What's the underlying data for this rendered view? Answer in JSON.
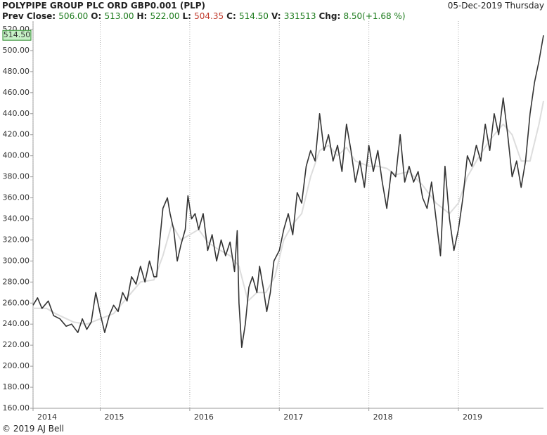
{
  "header": {
    "title": "POLYPIPE GROUP PLC ORD GBP0.001 (PLP)",
    "date": "05-Dec-2019 Thursday",
    "stats": [
      {
        "label": "Prev Close:",
        "value": "506.00",
        "color": "#1a7a1a"
      },
      {
        "label": "O:",
        "value": "513.00",
        "color": "#1a7a1a"
      },
      {
        "label": "H:",
        "value": "522.00",
        "color": "#1a7a1a"
      },
      {
        "label": "L:",
        "value": "504.35",
        "color": "#c0392b"
      },
      {
        "label": "C:",
        "value": "514.50",
        "color": "#1a7a1a"
      },
      {
        "label": "V:",
        "value": "331513",
        "color": "#1a7a1a"
      },
      {
        "label": "Chg:",
        "value": "8.50(+1.68 %)",
        "color": "#1a7a1a"
      }
    ]
  },
  "footer": "© 2019 AJ Bell",
  "chart_data": {
    "type": "line",
    "xlim": [
      2014.25,
      2019.95
    ],
    "xticks": [
      {
        "value": 2014.25,
        "label": "2014"
      },
      2015,
      2016,
      2017,
      2018,
      2019
    ],
    "ylim": [
      160,
      524
    ],
    "yticks": [
      {
        "value": 160,
        "label": "160.00"
      },
      {
        "value": 180,
        "label": "180.00"
      },
      {
        "value": 200,
        "label": "200.00"
      },
      {
        "value": 220,
        "label": "220.00"
      },
      {
        "value": 240,
        "label": "240.00"
      },
      {
        "value": 260,
        "label": "260.00"
      },
      {
        "value": 280,
        "label": "280.00"
      },
      {
        "value": 300,
        "label": "300.00"
      },
      {
        "value": 320,
        "label": "320.00"
      },
      {
        "value": 340,
        "label": "340.00"
      },
      {
        "value": 360,
        "label": "360.00"
      },
      {
        "value": 380,
        "label": "380.00"
      },
      {
        "value": 400,
        "label": "400.00"
      },
      {
        "value": 420,
        "label": "420.00"
      },
      {
        "value": 440,
        "label": "440.00"
      },
      {
        "value": 460,
        "label": "460.00"
      },
      {
        "value": 480,
        "label": "480.00"
      },
      {
        "value": 500,
        "label": "500.00"
      },
      {
        "value": 520,
        "label": "520.00"
      }
    ],
    "grid": true,
    "series": [
      {
        "color": "#333333",
        "x": [
          2014.25,
          2014.3,
          2014.35,
          2014.42,
          2014.48,
          2014.55,
          2014.62,
          2014.68,
          2014.75,
          2014.8,
          2014.85,
          2014.9,
          2014.95,
          2015.0,
          2015.05,
          2015.1,
          2015.15,
          2015.2,
          2015.25,
          2015.3,
          2015.35,
          2015.4,
          2015.45,
          2015.5,
          2015.55,
          2015.6,
          2015.63,
          2015.66,
          2015.7,
          2015.75,
          2015.78,
          2015.82,
          2015.86,
          2015.9,
          2015.95,
          2015.98,
          2016.02,
          2016.06,
          2016.1,
          2016.15,
          2016.2,
          2016.25,
          2016.3,
          2016.35,
          2016.4,
          2016.45,
          2016.5,
          2016.53,
          2016.55,
          2016.58,
          2016.62,
          2016.66,
          2016.7,
          2016.75,
          2016.78,
          2016.82,
          2016.86,
          2016.9,
          2016.94,
          2017.0,
          2017.05,
          2017.1,
          2017.15,
          2017.2,
          2017.25,
          2017.3,
          2017.35,
          2017.4,
          2017.45,
          2017.5,
          2017.55,
          2017.6,
          2017.65,
          2017.7,
          2017.75,
          2017.8,
          2017.85,
          2017.9,
          2017.95,
          2018.0,
          2018.05,
          2018.1,
          2018.15,
          2018.2,
          2018.25,
          2018.3,
          2018.35,
          2018.4,
          2018.45,
          2018.5,
          2018.55,
          2018.6,
          2018.65,
          2018.7,
          2018.75,
          2018.8,
          2018.85,
          2018.9,
          2018.95,
          2019.0,
          2019.05,
          2019.1,
          2019.15,
          2019.2,
          2019.25,
          2019.3,
          2019.35,
          2019.4,
          2019.45,
          2019.5,
          2019.55,
          2019.6,
          2019.65,
          2019.7,
          2019.75,
          2019.8,
          2019.85,
          2019.9,
          2019.95
        ],
        "values": [
          258,
          265,
          255,
          262,
          248,
          245,
          238,
          240,
          232,
          245,
          235,
          242,
          270,
          250,
          232,
          248,
          258,
          252,
          270,
          262,
          285,
          278,
          295,
          280,
          300,
          285,
          285,
          315,
          350,
          360,
          345,
          330,
          300,
          315,
          330,
          362,
          340,
          345,
          330,
          345,
          310,
          325,
          300,
          320,
          305,
          318,
          290,
          329,
          260,
          218,
          240,
          275,
          285,
          270,
          295,
          275,
          252,
          270,
          300,
          310,
          330,
          345,
          325,
          365,
          355,
          390,
          405,
          395,
          440,
          405,
          420,
          395,
          410,
          385,
          430,
          405,
          375,
          395,
          370,
          410,
          385,
          405,
          375,
          350,
          385,
          380,
          420,
          375,
          390,
          375,
          385,
          360,
          350,
          375,
          340,
          305,
          390,
          340,
          310,
          330,
          360,
          400,
          390,
          410,
          395,
          430,
          405,
          440,
          420,
          455,
          420,
          380,
          395,
          370,
          395,
          440,
          470,
          490,
          514.5
        ]
      },
      {
        "color": "#dddddd",
        "x": [
          2014.25,
          2014.4,
          2014.5,
          2014.7,
          2014.85,
          2015.0,
          2015.15,
          2015.3,
          2015.45,
          2015.6,
          2015.7,
          2015.8,
          2015.9,
          2016.0,
          2016.1,
          2016.2,
          2016.3,
          2016.45,
          2016.55,
          2016.65,
          2016.75,
          2016.85,
          2016.95,
          2017.05,
          2017.15,
          2017.25,
          2017.35,
          2017.45,
          2017.55,
          2017.65,
          2017.75,
          2017.85,
          2018.0,
          2018.1,
          2018.2,
          2018.3,
          2018.45,
          2018.6,
          2018.75,
          2018.9,
          2019.0,
          2019.1,
          2019.2,
          2019.35,
          2019.5,
          2019.6,
          2019.7,
          2019.8,
          2019.9,
          2019.95
        ],
        "values": [
          255,
          255,
          250,
          242,
          240,
          245,
          250,
          265,
          280,
          282,
          305,
          335,
          320,
          325,
          330,
          318,
          312,
          305,
          295,
          262,
          270,
          270,
          285,
          320,
          335,
          345,
          380,
          405,
          410,
          400,
          408,
          395,
          390,
          390,
          388,
          382,
          385,
          372,
          355,
          345,
          355,
          380,
          395,
          415,
          430,
          420,
          395,
          395,
          430,
          452
        ]
      }
    ]
  }
}
